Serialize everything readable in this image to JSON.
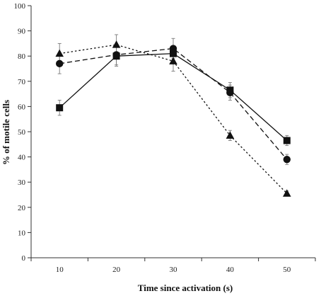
{
  "chart_data": {
    "type": "line",
    "xlabel": "Time since activation (s)",
    "ylabel": "% of motile cells",
    "x": [
      10,
      20,
      30,
      40,
      50
    ],
    "xlim": [
      5,
      55
    ],
    "ylim": [
      0,
      100
    ],
    "yticks": [
      0,
      10,
      20,
      30,
      40,
      50,
      60,
      70,
      80,
      90,
      100
    ],
    "grid": false,
    "legend": "none",
    "series": [
      {
        "marker": "square",
        "dash": "solid",
        "values": [
          59.5,
          80,
          81,
          66.5,
          46.5
        ],
        "errors": [
          3,
          4,
          3,
          3,
          2
        ]
      },
      {
        "marker": "circle",
        "dash": "dashed",
        "values": [
          77,
          80.5,
          83,
          65.5,
          39
        ],
        "errors": [
          4,
          4,
          4,
          3,
          2
        ]
      },
      {
        "marker": "triangle",
        "dash": "dotted",
        "values": [
          81,
          84.5,
          78,
          48.5,
          25.5
        ],
        "errors": [
          4,
          4,
          4,
          2,
          1
        ]
      }
    ]
  }
}
